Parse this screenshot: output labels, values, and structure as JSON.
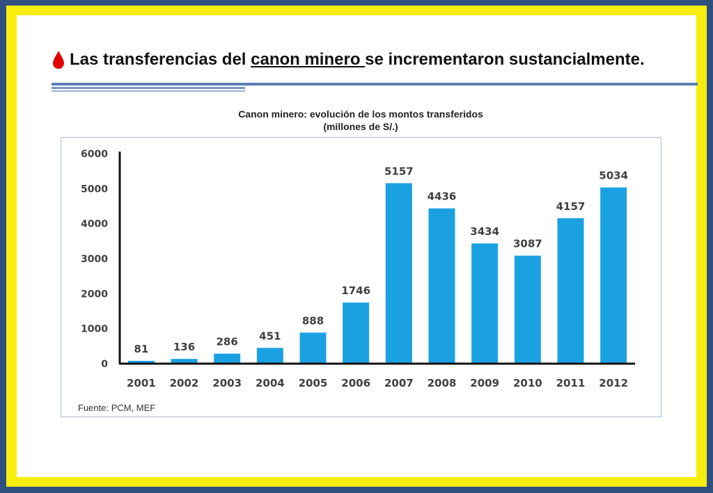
{
  "slide": {
    "title_pre": "Las transferencias del ",
    "title_link": "canon minero ",
    "title_post": "se incrementaron sustancialmente.",
    "bullet_icon": "drop-icon",
    "colors": {
      "bullet": "#e00000",
      "bar": "#1ba1e2",
      "frame_outer": "#2f4f7f",
      "frame_inner": "#f7ee10"
    }
  },
  "chart_title_line1": "Canon minero: evolución de los montos transferidos",
  "chart_title_line2": "(millones de S/.)",
  "source": "Fuente: PCM, MEF",
  "chart_data": {
    "type": "bar",
    "title": "Canon minero: evolución de los montos transferidos (millones de S/.)",
    "categories": [
      "2001",
      "2002",
      "2003",
      "2004",
      "2005",
      "2006",
      "2007",
      "2008",
      "2009",
      "2010",
      "2011",
      "2012"
    ],
    "values": [
      81,
      136,
      286,
      451,
      888,
      1746,
      5157,
      4436,
      3434,
      3087,
      4157,
      5034
    ],
    "ylim": [
      0,
      6000
    ],
    "yticks": [
      0,
      1000,
      2000,
      3000,
      4000,
      5000,
      6000
    ],
    "grid": false,
    "data_labels": true
  }
}
